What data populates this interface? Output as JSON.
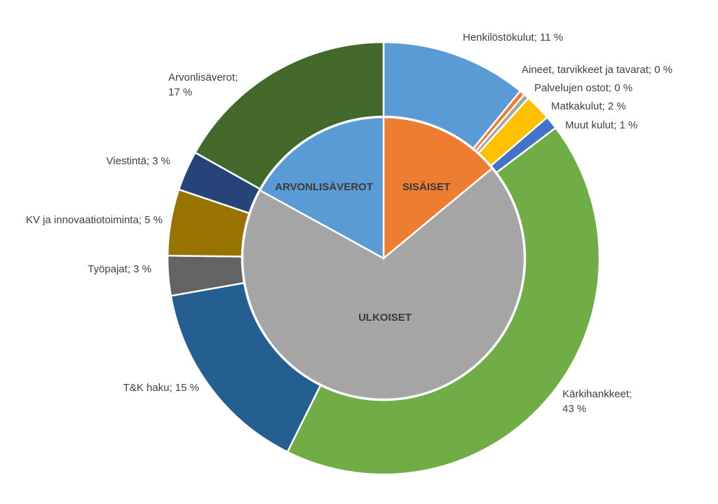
{
  "chart_data": {
    "type": "pie",
    "subtype": "nested-donut",
    "title": "",
    "inner": {
      "slices": [
        {
          "label": "SISÄISET",
          "value": 14,
          "color": "#ED7D31"
        },
        {
          "label": "ULKOISET",
          "value": 69,
          "color": "#A5A5A5"
        },
        {
          "label": "ARVONLISÄVEROT",
          "value": 17,
          "color": "#5B9BD5"
        }
      ]
    },
    "outer": {
      "slices": [
        {
          "label": "Henkilöstökulut; 11 %",
          "value": 11,
          "color": "#5B9BD5"
        },
        {
          "label": "Aineet, tarvikkeet ja tavarat; 0 %",
          "value": 0.4,
          "color": "#ED7D31"
        },
        {
          "label": "Palvelujen ostot; 0 %",
          "value": 0.4,
          "color": "#A5A5A5"
        },
        {
          "label": "Matkakulut; 2 %",
          "value": 2,
          "color": "#FFC000"
        },
        {
          "label": "Muut kulut; 1 %",
          "value": 1,
          "color": "#4472C4"
        },
        {
          "label": "Kärkihankkeet;\n43 %",
          "value": 43,
          "color": "#70AD47"
        },
        {
          "label": "T&K haku; 15 %",
          "value": 15,
          "color": "#255E91"
        },
        {
          "label": "Työpajat; 3 %",
          "value": 3,
          "color": "#636363"
        },
        {
          "label": "KV ja innovaatiotoiminta; 5 %",
          "value": 5,
          "color": "#997300"
        },
        {
          "label": "Viestintä; 3 %",
          "value": 3,
          "color": "#264478"
        },
        {
          "label": "Arvonlisäverot;\n17 %",
          "value": 17,
          "color": "#43682B"
        }
      ]
    }
  }
}
